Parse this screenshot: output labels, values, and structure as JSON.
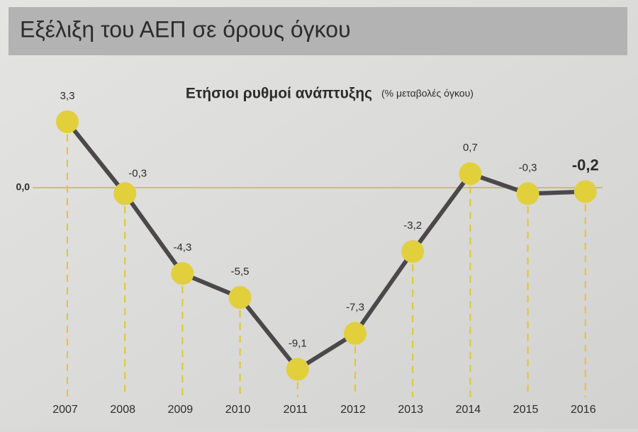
{
  "header": {
    "title": "Εξέλιξη του ΑΕΠ σε όρους όγκου"
  },
  "chart_data": {
    "type": "line",
    "title": "Ετήσιοι ρυθμοί ανάπτυξης",
    "subtitle": "(% μεταβολές όγκου)",
    "categories": [
      "2007",
      "2008",
      "2009",
      "2010",
      "2011",
      "2012",
      "2013",
      "2014",
      "2015",
      "2016"
    ],
    "values": [
      3.3,
      -0.3,
      -4.3,
      -5.5,
      -9.1,
      -7.3,
      -3.2,
      0.7,
      -0.3,
      -0.2
    ],
    "value_labels": [
      "3,3",
      "-0,3",
      "-4,3",
      "-5,5",
      "-9,1",
      "-7,3",
      "-3,2",
      "0,7",
      "-0,3",
      "-0,2"
    ],
    "color": "#4b484b",
    "marker_color": "#e2cf3c",
    "ylim": [
      -10.5,
      5
    ],
    "yticks": [
      {
        "value": 0,
        "label": "0,0"
      }
    ],
    "grid": true
  }
}
